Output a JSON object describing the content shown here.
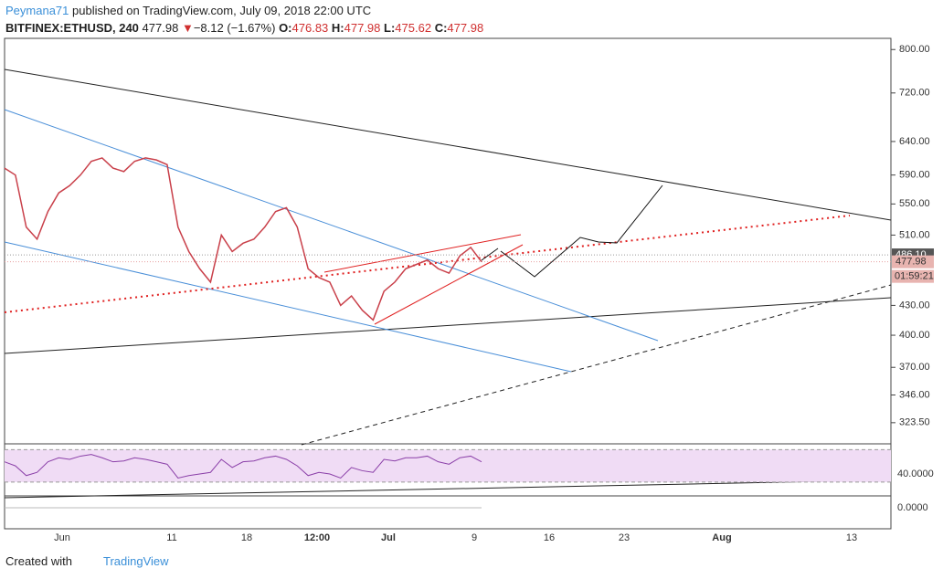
{
  "header": {
    "author": "Peymana71",
    "published": "published on TradingView.com, July 09, 2018 22:00 UTC",
    "symbol": "BITFINEX:ETHUSD, 240",
    "last": "477.98",
    "change": "−8.12 (−1.67%)",
    "o_label": "O:",
    "o": "476.83",
    "h_label": "H:",
    "h": "477.98",
    "l_label": "L:",
    "l": "475.62",
    "c_label": "C:",
    "c": "477.98"
  },
  "chart_data": {
    "type": "line",
    "log_scale": true,
    "x_labels": [
      "Jun",
      "11",
      "18",
      "12:00",
      "Jul",
      "9",
      "16",
      "23",
      "Aug",
      "13"
    ],
    "series": [
      {
        "name": "ETHUSD",
        "color": "#c9404a",
        "values": [
          600,
          590,
          520,
          505,
          540,
          565,
          575,
          590,
          610,
          615,
          600,
          595,
          610,
          615,
          612,
          605,
          520,
          490,
          470,
          455,
          510,
          490,
          500,
          505,
          520,
          540,
          545,
          520,
          470,
          460,
          455,
          430,
          440,
          425,
          415,
          445,
          455,
          470,
          475,
          480,
          470,
          465,
          485,
          495,
          478
        ]
      }
    ],
    "ylim": [
      308,
      822
    ],
    "yticks": [
      {
        "value": 800,
        "label": "800.00"
      },
      {
        "value": 720,
        "label": "720.00"
      },
      {
        "value": 640,
        "label": "640.00"
      },
      {
        "value": 590,
        "label": "590.00"
      },
      {
        "value": 550,
        "label": "550.00"
      },
      {
        "value": 510,
        "label": "510.00"
      },
      {
        "value": 430,
        "label": "430.00"
      },
      {
        "value": 400,
        "label": "400.00"
      },
      {
        "value": 370,
        "label": "370.00"
      },
      {
        "value": 346,
        "label": "346.00"
      },
      {
        "value": 323.5,
        "label": "323.50"
      }
    ],
    "price_labels": [
      {
        "value": 486.1,
        "label": "486.10",
        "color": "#555555"
      },
      {
        "value": 477.98,
        "label": "477.98",
        "color": "#e8b4b0"
      }
    ],
    "countdown": "01:59:21",
    "rsi": {
      "color": "#8a3fa8",
      "ylim": [
        13,
        76
      ],
      "band": [
        30,
        70
      ],
      "yticks": [
        {
          "value": 40,
          "label": "40.0000"
        }
      ],
      "values": [
        55,
        50,
        38,
        42,
        55,
        60,
        58,
        62,
        64,
        60,
        55,
        56,
        60,
        58,
        55,
        52,
        35,
        38,
        40,
        42,
        58,
        48,
        55,
        56,
        60,
        62,
        58,
        50,
        38,
        42,
        40,
        35,
        48,
        44,
        42,
        58,
        56,
        60,
        60,
        62,
        55,
        52,
        60,
        62,
        55
      ]
    },
    "macd": {
      "yticks": [
        {
          "value": 0,
          "label": "0.0000"
        }
      ]
    }
  },
  "footer": {
    "created": "Created with",
    "brand": "TradingView"
  }
}
